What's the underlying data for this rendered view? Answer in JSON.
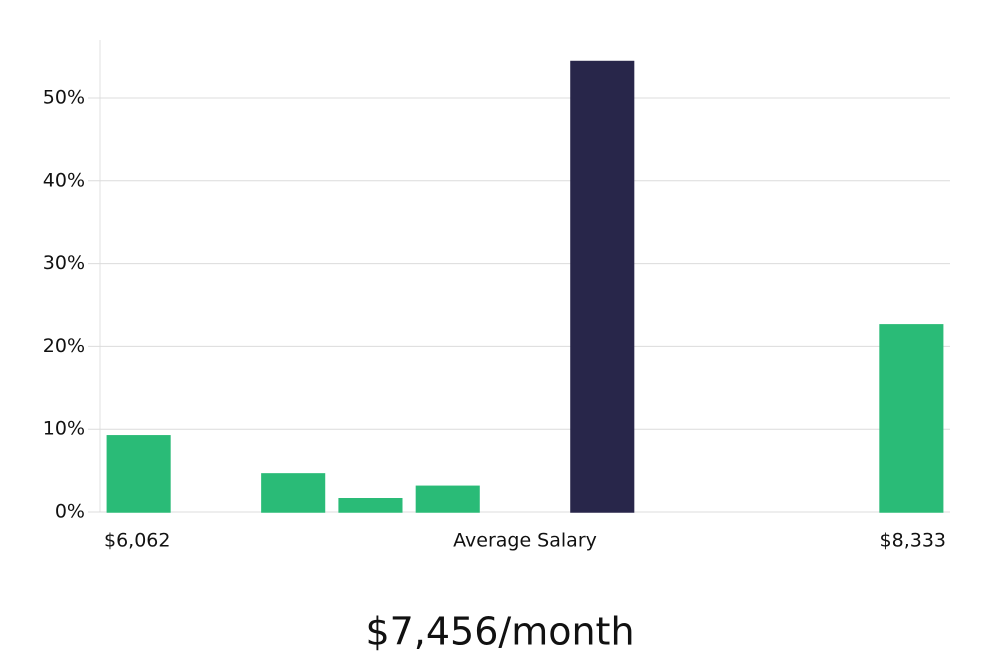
{
  "chart_data": {
    "type": "bar",
    "values": [
      9.2,
      0,
      4.6,
      1.6,
      3.1,
      0,
      54.4,
      0,
      0,
      0,
      22.6
    ],
    "colors": [
      "#2abb77",
      "#2abb77",
      "#2abb77",
      "#2abb77",
      "#2abb77",
      "#2abb77",
      "#28264a",
      "#2abb77",
      "#2abb77",
      "#2abb77",
      "#2abb77"
    ],
    "ylim": [
      0,
      57
    ],
    "yticks": [
      {
        "value": 0,
        "label": "0%"
      },
      {
        "value": 10,
        "label": "10%"
      },
      {
        "value": 20,
        "label": "20%"
      },
      {
        "value": 30,
        "label": "30%"
      },
      {
        "value": 40,
        "label": "40%"
      },
      {
        "value": 50,
        "label": "50%"
      }
    ],
    "grid": true,
    "x_start_label": "$6,062",
    "x_axis_label": "Average Salary",
    "x_end_label": "$8,333",
    "footer": "$7,456/month"
  }
}
